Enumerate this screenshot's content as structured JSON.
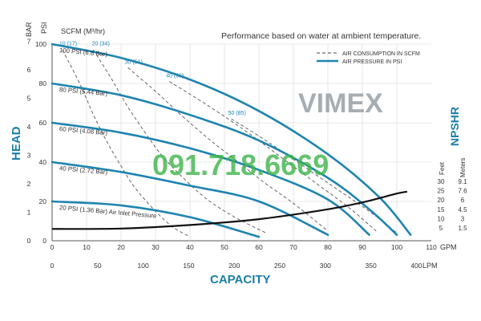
{
  "chart_data": {
    "type": "line",
    "title": "Performance based on water at ambient temperature.",
    "xlabel": "CAPACITY",
    "ylabel_left": "HEAD",
    "ylabel_right": "NPSHR",
    "left_units": {
      "bar": "BAR",
      "psi": "PSI"
    },
    "scfm_label": "SCFM (M³/hr)",
    "x_gpm": {
      "unit": "GPM",
      "ticks": [
        0,
        10,
        20,
        30,
        40,
        50,
        60,
        70,
        80,
        90,
        100,
        110
      ],
      "range": [
        0,
        110
      ]
    },
    "x_lpm": {
      "unit": "LPM",
      "ticks": [
        0,
        50,
        100,
        150,
        200,
        250,
        300,
        350,
        400
      ]
    },
    "y_psi": {
      "ticks": [
        0,
        20,
        40,
        60,
        80,
        100
      ],
      "range": [
        0,
        100
      ]
    },
    "y_bar": {
      "ticks": [
        0,
        1,
        2,
        3,
        4,
        5,
        6,
        7
      ]
    },
    "npshr": {
      "feet_label": "Feet",
      "meters_label": "Meters",
      "feet_ticks": [
        "30",
        "25",
        "20",
        "15",
        "10",
        "5"
      ],
      "meters_ticks": [
        "9.1",
        "7.6",
        "6",
        "4.5",
        "3",
        "1.5"
      ]
    },
    "legend": {
      "position": "top-right",
      "items": [
        {
          "label": "AIR CONSUMPTION IN SCFM",
          "style": "dashed"
        },
        {
          "label": "AIR PRESSURE IN PSI",
          "style": "solid"
        }
      ]
    },
    "series_pressure": [
      {
        "name": "100 PSI (6.8 Bar)",
        "x": [
          0,
          20,
          40,
          60,
          80,
          95,
          104
        ],
        "y": [
          100,
          93,
          82,
          66,
          44,
          22,
          3
        ]
      },
      {
        "name": "80 PSI (5.44 Bar)",
        "x": [
          0,
          20,
          40,
          60,
          80,
          92,
          100
        ],
        "y": [
          80,
          74,
          64,
          51,
          32,
          16,
          3
        ]
      },
      {
        "name": "60 PSI (4.08 Bar)",
        "x": [
          0,
          20,
          40,
          60,
          80,
          92
        ],
        "y": [
          60,
          55,
          47,
          36,
          21,
          3
        ]
      },
      {
        "name": "40 PSI (2.72 Bar)",
        "x": [
          0,
          20,
          40,
          60,
          80
        ],
        "y": [
          40,
          35,
          28,
          20,
          3
        ]
      },
      {
        "name": "20 PSI (1.36 Bar) Air Inlet Pressure",
        "x": [
          0,
          20,
          40,
          60
        ],
        "y": [
          20,
          18,
          12,
          2
        ]
      }
    ],
    "series_air": [
      {
        "name": "10 (17)",
        "x": [
          3,
          8,
          12,
          16,
          20,
          24,
          30,
          35,
          40
        ],
        "y": [
          97,
          80,
          64,
          50,
          38,
          27,
          15,
          7,
          2
        ]
      },
      {
        "name": "20 (34)",
        "x": [
          12,
          17,
          22,
          27,
          32,
          38,
          45,
          53,
          62
        ],
        "y": [
          97,
          83,
          68,
          55,
          43,
          32,
          21,
          12,
          4
        ]
      },
      {
        "name": "30 (51)",
        "x": [
          22,
          30,
          38,
          46,
          54,
          62,
          70,
          80
        ],
        "y": [
          88,
          76,
          63,
          51,
          40,
          29,
          19,
          5
        ]
      },
      {
        "name": "40 (68)",
        "x": [
          34,
          45,
          56,
          66,
          76,
          86,
          94
        ],
        "y": [
          81,
          69,
          56,
          43,
          30,
          17,
          5
        ]
      },
      {
        "name": "50 (85)",
        "x": [
          52,
          62,
          72,
          82,
          92,
          100
        ],
        "y": [
          62,
          51,
          39,
          27,
          15,
          4
        ]
      }
    ],
    "npshr_curve": {
      "x": [
        0,
        20,
        40,
        60,
        80,
        90,
        100,
        103
      ],
      "y": [
        6,
        6.2,
        8,
        11,
        16,
        19.5,
        24,
        25
      ]
    },
    "watermark": {
      "brand": "VIMEX",
      "phone": "091.718.6669"
    }
  }
}
